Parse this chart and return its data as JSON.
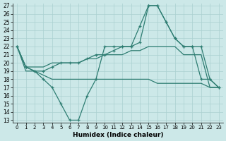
{
  "xlabel": "Humidex (Indice chaleur)",
  "x": [
    0,
    1,
    2,
    3,
    4,
    5,
    6,
    7,
    8,
    9,
    10,
    11,
    12,
    13,
    14,
    15,
    16,
    17,
    18,
    19,
    20,
    21,
    22,
    23
  ],
  "curve_wavy": [
    22,
    19.5,
    19,
    18,
    17,
    15,
    13,
    13,
    16,
    18,
    22,
    22,
    22,
    22,
    24.5,
    27,
    27,
    25,
    23,
    22,
    22,
    18,
    18,
    17
  ],
  "curve_top_trend": [
    22,
    19.5,
    19,
    19,
    19.5,
    20,
    20,
    20,
    20.5,
    21,
    21,
    21.5,
    22,
    22,
    22.5,
    27,
    27,
    25,
    23,
    22,
    22,
    22,
    18,
    17
  ],
  "curve_mid_trend": [
    22,
    19.5,
    19.5,
    19.5,
    20,
    20,
    20,
    20,
    20.5,
    20.5,
    21,
    21,
    21,
    21.5,
    21.5,
    22,
    22,
    22,
    22,
    21,
    21,
    21,
    17,
    17
  ],
  "curve_flat": [
    22,
    19,
    19,
    18.5,
    18,
    18,
    18,
    18,
    18,
    18,
    18,
    18,
    18,
    18,
    18,
    18,
    17.5,
    17.5,
    17.5,
    17.5,
    17.5,
    17.5,
    17,
    17
  ],
  "color": "#2e7d72",
  "bg_color": "#cce8e8",
  "grid_color": "#aad0d0",
  "ylim": [
    13,
    27
  ],
  "xlim": [
    -0.5,
    23.5
  ],
  "yticks": [
    13,
    14,
    15,
    16,
    17,
    18,
    19,
    20,
    21,
    22,
    23,
    24,
    25,
    26,
    27
  ],
  "xticks": [
    0,
    1,
    2,
    3,
    4,
    5,
    6,
    7,
    8,
    9,
    10,
    11,
    12,
    13,
    14,
    15,
    16,
    17,
    18,
    19,
    20,
    21,
    22,
    23
  ]
}
